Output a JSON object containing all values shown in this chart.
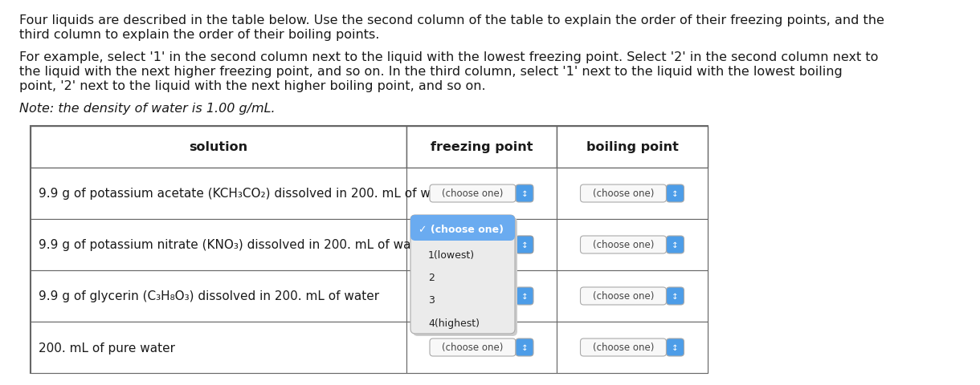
{
  "title_line1": "Four liquids are described in the table below. Use the second column of the table to explain the order of their freezing points, and the",
  "title_line2": "third column to explain the order of their boiling points.",
  "example_line1": "For example, select '1' in the second column next to the liquid with the lowest freezing point. Select '2' in the second column next to",
  "example_line2": "the liquid with the next higher freezing point, and so on. In the third column, select '1' next to the liquid with the lowest boiling",
  "example_line3": "point, '2' next to the liquid with the next higher boiling point, and so on.",
  "note_text": "Note: the density of water is 1.00 g/mL.",
  "col_headers": [
    "solution",
    "freezing point",
    "boiling point"
  ],
  "rows": [
    "9.9 g of potassium acetate (KCH₃CO₂) dissolved in 200. mL of water",
    "9.9 g of potassium nitrate (KNO₃) dissolved in 200. mL of water",
    "9.9 g of glycerin (C₃H₈O₃) dissolved in 200. mL of water",
    "200. mL of pure water"
  ],
  "dropdown_label": "(choose one)",
  "dropdown_blue": "#4d9de8",
  "dropdown_bg": "#f8f8f8",
  "dropdown_border": "#aaaaaa",
  "dropdown_selected_bg": "#6aabf0",
  "dropdown_popup_bg": "#ebebeb",
  "dropdown_popup_items": [
    "✓ (choose one)",
    "1(lowest)",
    "2",
    "3",
    "4(highest)"
  ],
  "table_border": "#666666",
  "bg_color": "#ffffff",
  "font_color": "#1a1a1a",
  "font_size_body": 11.5,
  "popup_row": 1
}
